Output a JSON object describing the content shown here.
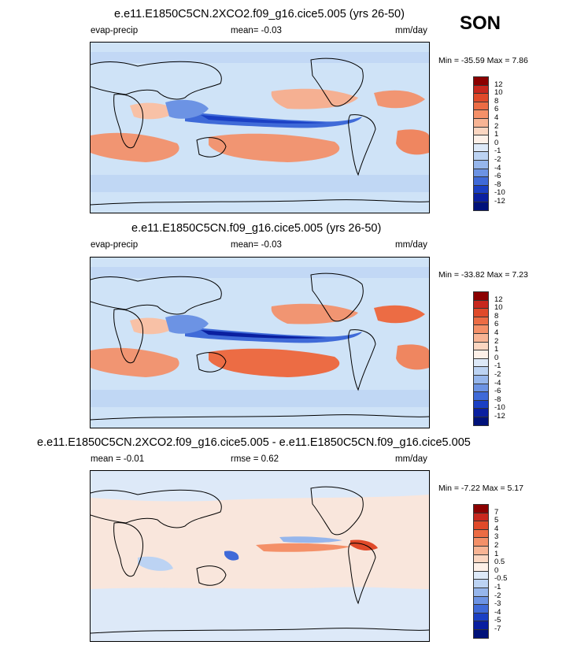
{
  "season": "SON",
  "chart_data": [
    {
      "type": "heatmap",
      "title": "e.e11.E1850C5CN.2XCO2.f09_g16.cice5.005 (yrs 26-50)",
      "left_label": "evap-precip",
      "stat_text": "mean=  -0.03",
      "units": "mm/day",
      "min_max_text": "Min = -35.59 Max =   7.86",
      "levels": [
        "12",
        "10",
        "8",
        "6",
        "4",
        "2",
        "1",
        "0",
        "-1",
        "-2",
        "-4",
        "-6",
        "-8",
        "-10",
        "-12"
      ],
      "colors": [
        "#8b0000",
        "#c8281e",
        "#e04a2a",
        "#ec6c44",
        "#f49068",
        "#f8b494",
        "#fbd6c1",
        "#fdf0e8",
        "#dde9f8",
        "#bcd3f3",
        "#96b6ec",
        "#6c93e4",
        "#3f6ad8",
        "#1a3fc4",
        "#0a1fa0",
        "#00127a"
      ]
    },
    {
      "type": "heatmap",
      "title": "e.e11.E1850C5CN.f09_g16.cice5.005 (yrs 26-50)",
      "left_label": "evap-precip",
      "stat_text": "mean=  -0.03",
      "units": "mm/day",
      "min_max_text": "Min = -33.82 Max =   7.23",
      "levels": [
        "12",
        "10",
        "8",
        "6",
        "4",
        "2",
        "1",
        "0",
        "-1",
        "-2",
        "-4",
        "-6",
        "-8",
        "-10",
        "-12"
      ],
      "colors": [
        "#8b0000",
        "#c8281e",
        "#e04a2a",
        "#ec6c44",
        "#f49068",
        "#f8b494",
        "#fbd6c1",
        "#fdf0e8",
        "#dde9f8",
        "#bcd3f3",
        "#96b6ec",
        "#6c93e4",
        "#3f6ad8",
        "#1a3fc4",
        "#0a1fa0",
        "#00127a"
      ]
    },
    {
      "type": "heatmap",
      "title": "e.e11.E1850C5CN.2XCO2.f09_g16.cice5.005 - e.e11.E1850C5CN.f09_g16.cice5.005",
      "left_label": "mean =  -0.01",
      "stat_text": "rmse =   0.62",
      "units": "mm/day",
      "min_max_text": "Min =  -7.22 Max =   5.17",
      "levels": [
        "7",
        "5",
        "4",
        "3",
        "2",
        "1",
        "0.5",
        "0",
        "-0.5",
        "-1",
        "-2",
        "-3",
        "-4",
        "-5",
        "-7"
      ],
      "colors": [
        "#8b0000",
        "#c8281e",
        "#e04a2a",
        "#ec6c44",
        "#f49068",
        "#f8b494",
        "#fbd6c1",
        "#fdf0e8",
        "#dde9f8",
        "#bcd3f3",
        "#96b6ec",
        "#6c93e4",
        "#3f6ad8",
        "#1a3fc4",
        "#0a1fa0",
        "#00127a"
      ]
    }
  ]
}
